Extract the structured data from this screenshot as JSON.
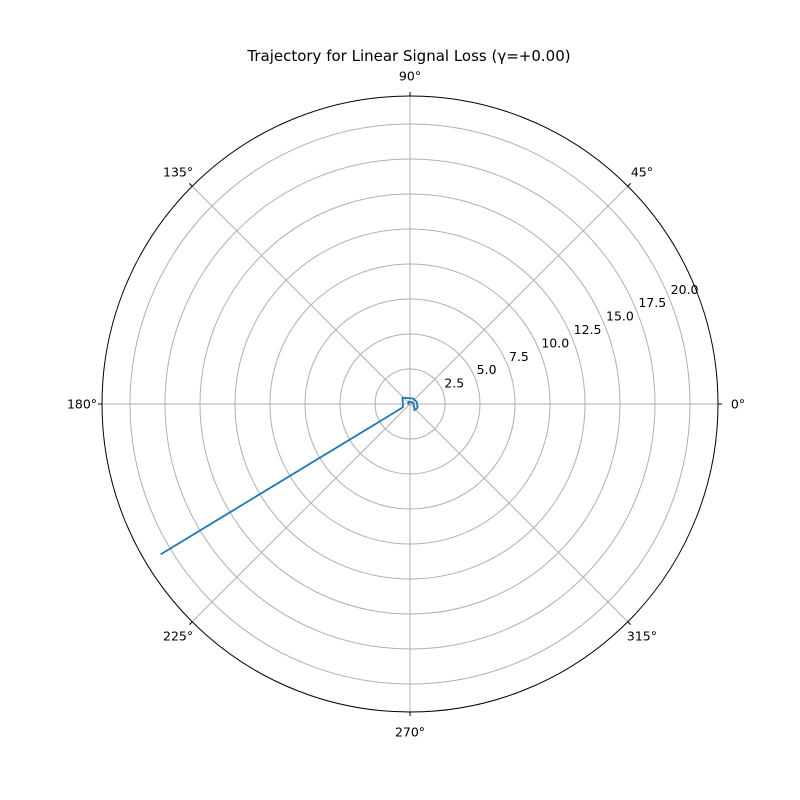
{
  "chart_data": {
    "type": "line",
    "projection": "polar",
    "title": "Trajectory for Linear Signal Loss (γ=+0.00)",
    "theta_tick_labels": [
      "0°",
      "45°",
      "90°",
      "135°",
      "180°",
      "225°",
      "270°",
      "315°"
    ],
    "theta_ticks_deg": [
      0,
      45,
      90,
      135,
      180,
      225,
      270,
      315
    ],
    "r_ticks": [
      2.5,
      5.0,
      7.5,
      10.0,
      12.5,
      15.0,
      17.5,
      20.0
    ],
    "r_tick_labels": [
      "2.5",
      "5.0",
      "7.5",
      "10.0",
      "12.5",
      "15.0",
      "17.5",
      "20.0"
    ],
    "r_tick_label_angle_deg": 22.5,
    "rlim": [
      0,
      22
    ],
    "grid": true,
    "series": [
      {
        "color": "#1f77b4",
        "points": [
          {
            "theta_deg": 211.1,
            "r": 20.8
          },
          {
            "theta_deg": 205,
            "r": 0.55
          },
          {
            "theta_deg": 140,
            "r": 0.7
          },
          {
            "theta_deg": 60,
            "r": 0.45
          },
          {
            "theta_deg": 15,
            "r": 0.5
          },
          {
            "theta_deg": -25,
            "r": 0.6
          },
          {
            "theta_deg": -55,
            "r": 0.55
          },
          {
            "theta_deg": -30,
            "r": 0.35
          },
          {
            "theta_deg": 20,
            "r": 0.25
          },
          {
            "theta_deg": 120,
            "r": 0.2
          },
          {
            "theta_deg": 200,
            "r": 0.15
          }
        ]
      }
    ]
  }
}
